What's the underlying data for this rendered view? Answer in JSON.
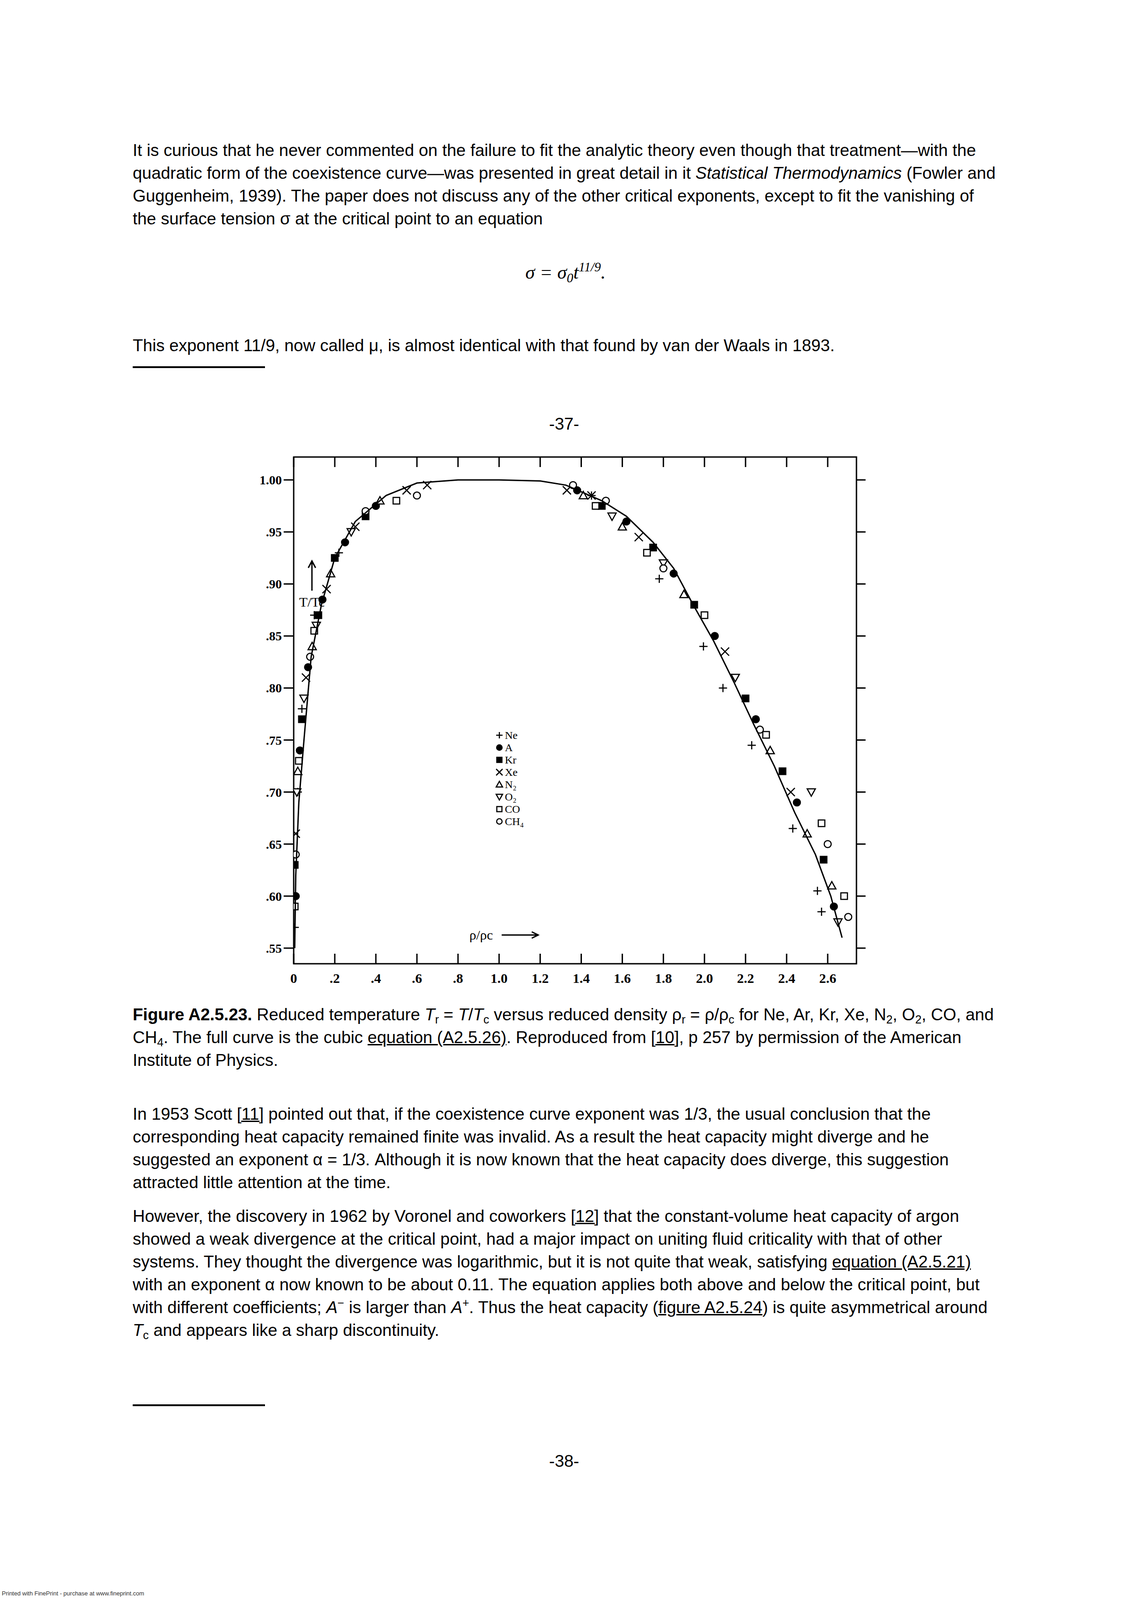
{
  "page": {
    "paragraphs": [
      {
        "runs": [
          {
            "text": "It is curious that he never commented on the failure to fit the analytic theory even though that treatment—with the quadratic form of the coexistence curve—was presented in great detail in it "
          },
          {
            "text": "Statistical Thermodynamics",
            "italic": true
          },
          {
            "text": " (Fowler and Guggenheim, 1939). The paper does not discuss any of the other critical exponents, except to fit the vanishing of the surface tension σ at the critical point to an equation"
          }
        ]
      },
      {
        "runs": [
          {
            "text": "This exponent 11/9, now called μ, is almost identical with that found by van der Waals in 1893."
          }
        ]
      },
      {
        "runs": [
          {
            "text": "In 1953 Scott "
          },
          {
            "text": "[11]",
            "link": true
          },
          {
            "text": " pointed out that, if the coexistence curve exponent was 1/3, the usual conclusion that the corresponding heat capacity remained finite was invalid. As a result the heat capacity might diverge and he suggested an exponent α = 1/3. Although it is now known that the heat capacity does diverge, this suggestion attracted little attention at the time."
          }
        ]
      },
      {
        "runs": [
          {
            "text": "However, the discovery in 1962 by Voronel and coworkers "
          },
          {
            "text": "[12]",
            "link": true
          },
          {
            "text": " that the constant-volume heat capacity of argon showed a weak divergence at the critical point, had a major impact on uniting fluid criticality with that of other systems. They thought the divergence was logarithmic, but it is not quite that weak, satisfying "
          },
          {
            "text": "equation (A2.5.21)",
            "link": true
          },
          {
            "text": " with an exponent α now known to be about 0.11. The equation applies both above and below the critical point, but with different coefficients; "
          },
          {
            "text": "A",
            "italic": true
          },
          {
            "text": "−",
            "sup": true
          },
          {
            "text": " is larger than "
          },
          {
            "text": "A",
            "italic": true
          },
          {
            "text": "+",
            "sup": true
          },
          {
            "text": ". Thus the heat capacity ("
          },
          {
            "text": "figure A2.5.24",
            "link": true
          },
          {
            "text": ") is quite asymmetrical around "
          },
          {
            "text": "T",
            "italic": true
          },
          {
            "text": "c",
            "sub": true
          },
          {
            "text": " and appears like a sharp discontinuity."
          }
        ]
      }
    ],
    "equation": {
      "runs": [
        {
          "text": "σ = σ"
        },
        {
          "text": "0",
          "sub": true
        },
        {
          "text": "t"
        },
        {
          "text": "11/9",
          "sup": true
        },
        {
          "text": "."
        }
      ]
    },
    "page_number_top": "-37-",
    "caption": {
      "runs": [
        {
          "text": "Figure A2.5.23.",
          "bold": true
        },
        {
          "text": " Reduced temperature "
        },
        {
          "text": "T",
          "italic": true
        },
        {
          "text": "r",
          "sub": true
        },
        {
          "text": " = "
        },
        {
          "text": "T",
          "italic": true
        },
        {
          "text": "/"
        },
        {
          "text": "T",
          "italic": true
        },
        {
          "text": "c",
          "sub": true
        },
        {
          "text": " versus reduced density ρ"
        },
        {
          "text": "r",
          "sub": true
        },
        {
          "text": " = ρ/ρ"
        },
        {
          "text": "c",
          "sub": true
        },
        {
          "text": " for Ne, Ar, Kr, Xe, N"
        },
        {
          "text": "2",
          "sub": true
        },
        {
          "text": ", O"
        },
        {
          "text": "2",
          "sub": true
        },
        {
          "text": ", CO, and CH"
        },
        {
          "text": "4",
          "sub": true
        },
        {
          "text": ". The full curve is the cubic "
        },
        {
          "text": "equation (A2.5.26)",
          "link": true
        },
        {
          "text": ". Reproduced from "
        },
        {
          "text": "[10]",
          "link": true
        },
        {
          "text": ", p 257 by permission of the American Institute of Physics."
        }
      ]
    },
    "page_number_bottom": "-38-",
    "footer": "Printed with FinePrint - purchase at www.fineprint.com"
  },
  "chart_data": {
    "type": "scatter",
    "x_label": "ρ/ρc",
    "y_label": "T/Tc",
    "xlim": [
      0,
      2.74
    ],
    "ylim": [
      0.535,
      1.022
    ],
    "xticks": [
      0,
      {
        "value": 0.2,
        "label": ".2"
      },
      {
        "value": 0.4,
        "label": ".4"
      },
      {
        "value": 0.6,
        "label": ".6"
      },
      {
        "value": 0.8,
        "label": ".8"
      },
      {
        "value": 1.0,
        "label": "1.0"
      },
      1.2,
      1.4,
      1.6,
      1.8,
      {
        "value": 2.0,
        "label": "2.0"
      },
      2.2,
      2.4,
      2.6
    ],
    "yticks": [
      {
        "value": 1.0,
        "label": "1.00"
      },
      {
        "value": 0.95,
        "label": ".95"
      },
      {
        "value": 0.9,
        "label": ".90"
      },
      {
        "value": 0.85,
        "label": ".85"
      },
      {
        "value": 0.8,
        "label": ".80"
      },
      {
        "value": 0.75,
        "label": ".75"
      },
      {
        "value": 0.7,
        "label": ".70"
      },
      {
        "value": 0.65,
        "label": ".65"
      },
      {
        "value": 0.6,
        "label": ".60"
      },
      {
        "value": 0.55,
        "label": ".55"
      }
    ],
    "grid": false,
    "legend": "center",
    "series": [
      {
        "name": "Ne",
        "color": "#000000",
        "marker": "plus",
        "x": [
          0.005,
          0.02,
          0.04,
          0.1,
          0.22,
          1.45,
          1.78,
          1.995,
          2.09,
          2.23,
          2.43,
          2.55,
          2.57
        ],
        "values": [
          0.57,
          0.7,
          0.78,
          0.87,
          0.93,
          0.985,
          0.905,
          0.84,
          0.8,
          0.745,
          0.665,
          0.605,
          0.585
        ]
      },
      {
        "name": "A",
        "color": "#000000",
        "marker": "filled-circle",
        "x": [
          0.01,
          0.03,
          0.07,
          0.14,
          0.25,
          0.4,
          1.38,
          1.62,
          1.85,
          2.05,
          2.25,
          2.45,
          2.63
        ],
        "values": [
          0.6,
          0.74,
          0.82,
          0.885,
          0.94,
          0.975,
          0.99,
          0.96,
          0.91,
          0.85,
          0.77,
          0.69,
          0.59
        ]
      },
      {
        "name": "Kr",
        "color": "#000000",
        "marker": "filled-square",
        "x": [
          0.005,
          0.04,
          0.12,
          0.2,
          0.35,
          1.5,
          1.75,
          1.95,
          2.2,
          2.38,
          2.58
        ],
        "values": [
          0.63,
          0.77,
          0.87,
          0.925,
          0.965,
          0.975,
          0.935,
          0.88,
          0.79,
          0.72,
          0.635
        ]
      },
      {
        "name": "Xe",
        "color": "#000000",
        "marker": "cross",
        "x": [
          0.01,
          0.06,
          0.16,
          0.3,
          0.55,
          0.65,
          1.33,
          1.45,
          1.68,
          2.1,
          2.42
        ],
        "values": [
          0.66,
          0.81,
          0.895,
          0.955,
          0.99,
          0.995,
          0.99,
          0.985,
          0.945,
          0.835,
          0.7
        ]
      },
      {
        "name": "N₂",
        "color": "#000000",
        "marker": "triangle",
        "x": [
          0.02,
          0.09,
          0.18,
          0.42,
          1.41,
          1.6,
          1.9,
          2.32,
          2.5,
          2.62
        ],
        "values": [
          0.72,
          0.84,
          0.91,
          0.98,
          0.985,
          0.955,
          0.89,
          0.74,
          0.66,
          0.61
        ]
      },
      {
        "name": "O₂",
        "color": "#000000",
        "marker": "triangle-down",
        "x": [
          0.015,
          0.05,
          0.11,
          0.28,
          1.55,
          1.8,
          2.15,
          2.52,
          2.65
        ],
        "values": [
          0.7,
          0.79,
          0.86,
          0.95,
          0.965,
          0.92,
          0.81,
          0.7,
          0.575
        ]
      },
      {
        "name": "CO",
        "color": "#000000",
        "marker": "square",
        "x": [
          0.005,
          0.025,
          0.1,
          0.5,
          1.47,
          1.72,
          2.0,
          2.3,
          2.57,
          2.68
        ],
        "values": [
          0.59,
          0.73,
          0.855,
          0.98,
          0.975,
          0.93,
          0.87,
          0.755,
          0.67,
          0.6
        ]
      },
      {
        "name": "CH₄",
        "color": "#000000",
        "marker": "circle",
        "x": [
          0.01,
          0.08,
          0.35,
          0.6,
          1.36,
          1.52,
          1.8,
          2.27,
          2.6,
          2.7
        ],
        "values": [
          0.64,
          0.83,
          0.97,
          0.985,
          0.995,
          0.98,
          0.915,
          0.76,
          0.65,
          0.58
        ]
      },
      {
        "type": "line",
        "color": "#000000",
        "line_style": "solid",
        "x": [
          0.005,
          0.01,
          0.025,
          0.05,
          0.085,
          0.135,
          0.2,
          0.3,
          0.45,
          0.6,
          0.8,
          1.0,
          1.2,
          1.325,
          1.5,
          1.62,
          1.75,
          1.85,
          1.945,
          2.045,
          2.145,
          2.24,
          2.34,
          2.44,
          2.54,
          2.615,
          2.67
        ],
        "values": [
          0.55,
          0.62,
          0.69,
          0.75,
          0.83,
          0.88,
          0.925,
          0.96,
          0.985,
          0.997,
          1.0,
          1.0,
          0.999,
          0.995,
          0.98,
          0.965,
          0.94,
          0.915,
          0.88,
          0.845,
          0.805,
          0.765,
          0.725,
          0.68,
          0.64,
          0.6,
          0.56
        ]
      }
    ]
  }
}
